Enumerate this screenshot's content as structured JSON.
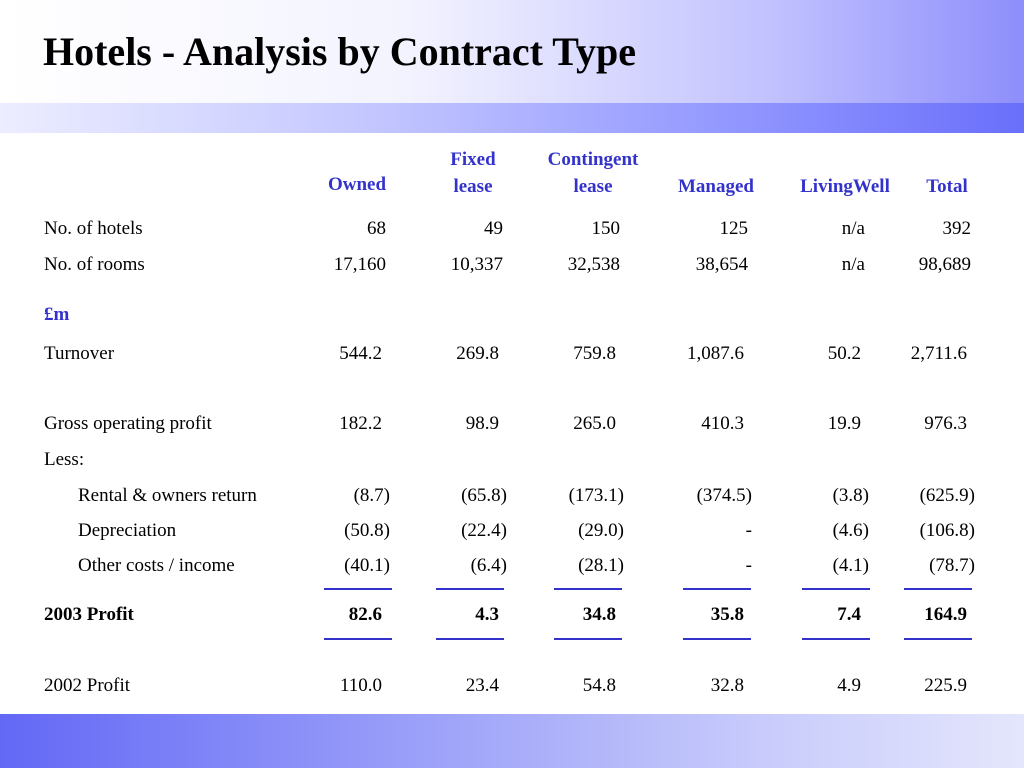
{
  "title": "Hotels - Analysis by Contract Type",
  "columns": [
    {
      "line1": "Owned",
      "line2": ""
    },
    {
      "line1": "Fixed",
      "line2": "lease"
    },
    {
      "line1": "Contingent",
      "line2": "lease"
    },
    {
      "line1": "Managed",
      "line2": ""
    },
    {
      "line1": "LivingWell",
      "line2": ""
    },
    {
      "line1": "Total",
      "line2": ""
    }
  ],
  "section_label": "£m",
  "less_label": "Less:",
  "rows": {
    "hotels": {
      "label": "No. of hotels",
      "values": [
        "68",
        "49",
        "150",
        "125",
        "n/a",
        "392"
      ]
    },
    "rooms": {
      "label": "No. of rooms",
      "values": [
        "17,160",
        "10,337",
        "32,538",
        "38,654",
        "n/a",
        "98,689"
      ]
    },
    "turnover": {
      "label": "Turnover",
      "values": [
        "544.2",
        "269.8",
        "759.8",
        "1,087.6",
        "50.2",
        "2,711.6"
      ]
    },
    "gop": {
      "label": "Gross operating profit",
      "values": [
        "182.2",
        "98.9",
        "265.0",
        "410.3",
        "19.9",
        "976.3"
      ]
    },
    "rental": {
      "label": "Rental & owners return",
      "values": [
        "(8.7)",
        "(65.8)",
        "(173.1)",
        "(374.5)",
        "(3.8)",
        "(625.9)"
      ]
    },
    "depr": {
      "label": "Depreciation",
      "values": [
        "(50.8)",
        "(22.4)",
        "(29.0)",
        "-",
        "(4.6)",
        "(106.8)"
      ]
    },
    "other": {
      "label": "Other costs / income",
      "values": [
        "(40.1)",
        "(6.4)",
        "(28.1)",
        "-",
        "(4.1)",
        "(78.7)"
      ]
    },
    "p2003": {
      "label": "2003 Profit",
      "values": [
        "82.6",
        "4.3",
        "34.8",
        "35.8",
        "7.4",
        "164.9"
      ]
    },
    "p2002": {
      "label": "2002 Profit",
      "values": [
        "110.0",
        "23.4",
        "54.8",
        "32.8",
        "4.9",
        "225.9"
      ]
    }
  }
}
